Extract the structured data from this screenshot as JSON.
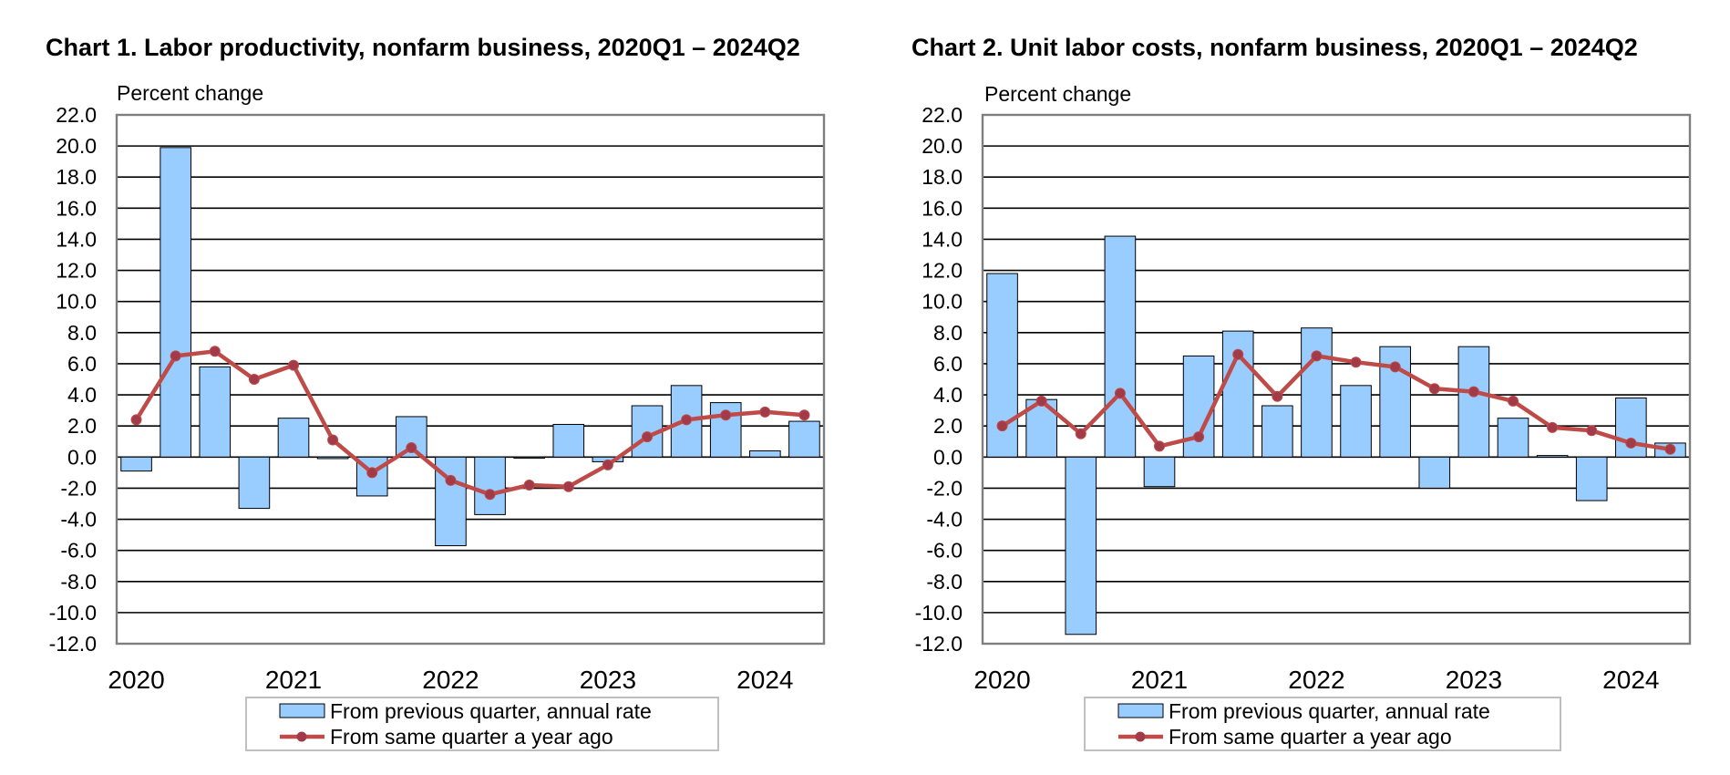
{
  "chart_data": [
    {
      "type": "bar+line",
      "title": "Chart  1. Labor productivity, nonfarm business, 2020Q1 – 2024Q2",
      "ylabel": "Percent change",
      "ylim": [
        -12.0,
        22.0
      ],
      "ytick_step": 2.0,
      "grid": true,
      "xtick_labels": [
        "2020",
        "2021",
        "2022",
        "2023",
        "2024"
      ],
      "categories": [
        "2020Q1",
        "2020Q2",
        "2020Q3",
        "2020Q4",
        "2021Q1",
        "2021Q2",
        "2021Q3",
        "2021Q4",
        "2022Q1",
        "2022Q2",
        "2022Q3",
        "2022Q4",
        "2023Q1",
        "2023Q2",
        "2023Q3",
        "2023Q4",
        "2024Q1",
        "2024Q2"
      ],
      "series": [
        {
          "name": "From previous quarter, annual rate",
          "kind": "bar",
          "values": [
            -0.9,
            19.9,
            5.8,
            -3.3,
            2.5,
            -0.1,
            -2.5,
            2.6,
            -5.7,
            -3.7,
            0.0,
            2.1,
            -0.3,
            3.3,
            4.6,
            3.5,
            0.4,
            2.3
          ]
        },
        {
          "name": "From same quarter a year ago",
          "kind": "line",
          "values": [
            2.4,
            6.5,
            6.8,
            5.0,
            5.9,
            1.1,
            -1.0,
            0.6,
            -1.5,
            -2.4,
            -1.8,
            -1.9,
            -0.5,
            1.3,
            2.4,
            2.7,
            2.9,
            2.7
          ]
        }
      ],
      "legend_position": "bottom"
    },
    {
      "type": "bar+line",
      "title": "Chart  2. Unit labor costs, nonfarm business, 2020Q1 – 2024Q2",
      "ylabel": "Percent change",
      "ylim": [
        -12.0,
        22.0
      ],
      "ytick_step": 2.0,
      "grid": true,
      "xtick_labels": [
        "2020",
        "2021",
        "2022",
        "2023",
        "2024"
      ],
      "categories": [
        "2020Q1",
        "2020Q2",
        "2020Q3",
        "2020Q4",
        "2021Q1",
        "2021Q2",
        "2021Q3",
        "2021Q4",
        "2022Q1",
        "2022Q2",
        "2022Q3",
        "2022Q4",
        "2023Q1",
        "2023Q2",
        "2023Q3",
        "2023Q4",
        "2024Q1",
        "2024Q2"
      ],
      "series": [
        {
          "name": "From previous quarter, annual rate",
          "kind": "bar",
          "values": [
            11.8,
            3.7,
            -11.4,
            14.2,
            -1.9,
            6.5,
            8.1,
            3.3,
            8.3,
            4.6,
            7.1,
            -2.0,
            7.1,
            2.5,
            0.1,
            -2.8,
            3.8,
            0.9
          ]
        },
        {
          "name": "From same quarter a year ago",
          "kind": "line",
          "values": [
            2.0,
            3.6,
            1.5,
            4.1,
            0.7,
            1.3,
            6.6,
            3.9,
            6.5,
            6.1,
            5.8,
            4.4,
            4.2,
            3.6,
            1.9,
            1.7,
            0.9,
            0.5
          ]
        }
      ],
      "legend_position": "bottom"
    }
  ],
  "colors": {
    "bar_fill": "#99CCFF",
    "bar_stroke": "#000000",
    "line": "#BE4B48",
    "marker": "#A23B49",
    "grid": "#000000",
    "axis": "#7F7F7F"
  }
}
